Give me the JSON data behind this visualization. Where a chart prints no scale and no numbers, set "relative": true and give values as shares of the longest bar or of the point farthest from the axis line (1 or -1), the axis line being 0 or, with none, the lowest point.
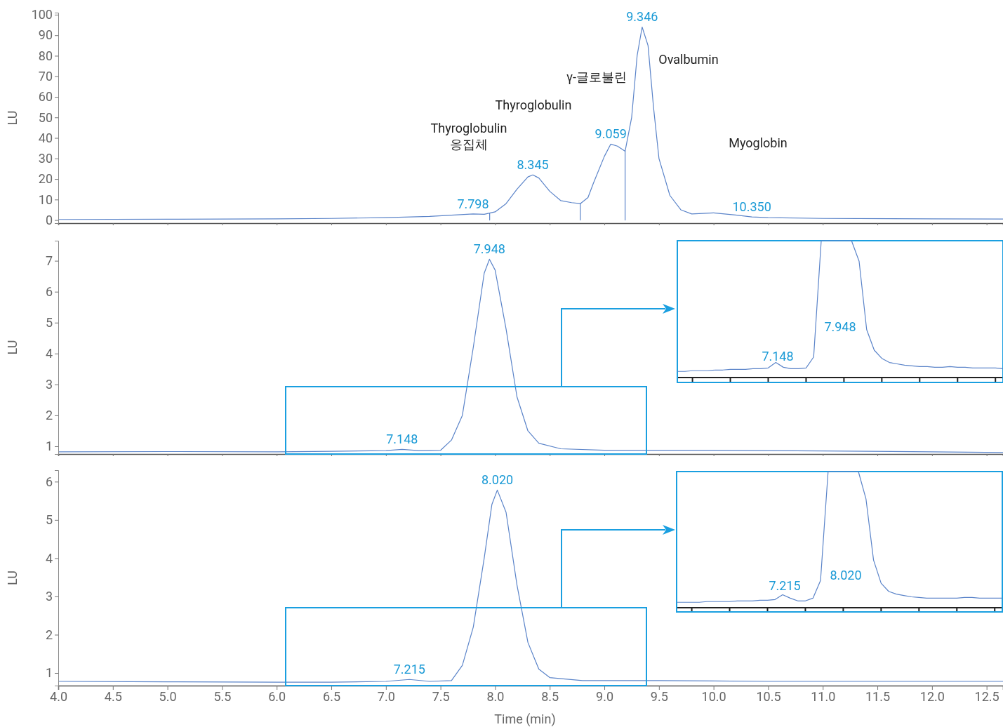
{
  "chart_data": [
    {
      "type": "line",
      "ylabel": "LU",
      "xlim": [
        4.0,
        12.65
      ],
      "ylim": [
        -1.5,
        101
      ],
      "xticks": [
        4.0,
        4.5,
        5.0,
        5.5,
        6.0,
        6.5,
        7.0,
        7.5,
        8.0,
        8.5,
        9.0,
        9.5,
        10.0,
        10.5,
        11.0,
        11.5,
        12.0,
        12.5
      ],
      "yticks": [
        0,
        10,
        20,
        30,
        40,
        50,
        60,
        70,
        80,
        90,
        100
      ],
      "tick_labels": "y",
      "series": [
        {
          "color": "#5b84c9",
          "x": [
            4.0,
            5.0,
            6.0,
            6.5,
            7.0,
            7.4,
            7.6,
            7.798,
            7.9,
            8.0,
            8.1,
            8.2,
            8.3,
            8.345,
            8.4,
            8.5,
            8.6,
            8.7,
            8.78,
            8.85,
            8.9,
            9.0,
            9.059,
            9.12,
            9.19,
            9.25,
            9.3,
            9.346,
            9.4,
            9.45,
            9.5,
            9.6,
            9.7,
            9.8,
            10.0,
            10.2,
            10.35,
            10.5,
            11.0,
            12.0,
            12.65
          ],
          "values": [
            0.3,
            0.4,
            0.6,
            0.8,
            1.2,
            1.8,
            2.4,
            3.0,
            2.8,
            4,
            8,
            15,
            21,
            22,
            20.5,
            14,
            9.5,
            8.5,
            8,
            11,
            18,
            31,
            37,
            36,
            33.5,
            50,
            80,
            94,
            85,
            55,
            30,
            12,
            5,
            3,
            3.5,
            2.5,
            1.5,
            1.2,
            0.8,
            0.6,
            0.5
          ]
        },
        {
          "type": "line",
          "color": "#5b84c9",
          "x": [
            7.95,
            7.95
          ],
          "values": [
            0,
            3.4
          ]
        },
        {
          "type": "line",
          "color": "#5b84c9",
          "x": [
            8.78,
            8.78
          ],
          "values": [
            0,
            8
          ]
        },
        {
          "type": "line",
          "color": "#5b84c9",
          "x": [
            9.19,
            9.19
          ],
          "values": [
            0,
            33.5
          ]
        }
      ],
      "annotations": [
        "Thyroglobulin\n응집체",
        "Thyroglobulin",
        "γ-글로불린",
        "Ovalbumin",
        "Myoglobin",
        {
          "text": "7.798",
          "x": 7.798,
          "y": 3.0
        },
        {
          "text": "8.345",
          "x": 8.345,
          "y": 22
        },
        {
          "text": "9.059",
          "x": 9.059,
          "y": 37
        },
        {
          "text": "9.346",
          "x": 9.346,
          "y": 94
        },
        {
          "text": "10.350",
          "x": 10.35,
          "y": 1.5
        }
      ]
    },
    {
      "type": "line",
      "ylabel": "LU",
      "xlim": [
        4.0,
        12.65
      ],
      "ylim": [
        0.75,
        7.65
      ],
      "xticks": [
        4.0,
        4.5,
        5.0,
        5.5,
        6.0,
        6.5,
        7.0,
        7.5,
        8.0,
        8.5,
        9.0,
        9.5,
        10.0,
        10.5,
        11.0,
        11.5,
        12.0,
        12.5
      ],
      "yticks": [
        1,
        2,
        3,
        4,
        5,
        6,
        7
      ],
      "tick_labels": "y",
      "series": [
        {
          "color": "#5b84c9",
          "x": [
            4.0,
            5.0,
            6.0,
            6.5,
            7.0,
            7.148,
            7.3,
            7.5,
            7.6,
            7.7,
            7.8,
            7.9,
            7.948,
            8.0,
            8.1,
            8.2,
            8.3,
            8.4,
            8.6,
            9.0,
            10.0,
            11.0,
            12.0,
            12.65
          ],
          "values": [
            0.82,
            0.83,
            0.82,
            0.84,
            0.86,
            0.9,
            0.86,
            0.87,
            1.2,
            2.0,
            4.2,
            6.6,
            7.05,
            6.7,
            4.8,
            2.6,
            1.5,
            1.1,
            0.92,
            0.87,
            0.87,
            0.85,
            0.82,
            0.8
          ]
        }
      ],
      "annotations": [
        {
          "text": "7.148",
          "x": 7.148,
          "y": 0.9
        },
        {
          "text": "7.948",
          "x": 7.948,
          "y": 7.05
        }
      ]
    },
    {
      "type": "line",
      "relative": true,
      "tick_labels": false,
      "categories": [
        null,
        null,
        null,
        null,
        null,
        null,
        null,
        null,
        null,
        null,
        null,
        null,
        null,
        null,
        null,
        null,
        null,
        null,
        null,
        null,
        null,
        null,
        null,
        null,
        null,
        null,
        null,
        null,
        null,
        null,
        null,
        null,
        null,
        null,
        null,
        null,
        null,
        null,
        null,
        null,
        null,
        null,
        null,
        null
      ],
      "series": [
        {
          "color": "#5b84c9",
          "values": [
            0.045,
            0.045,
            0.05,
            0.05,
            0.05,
            0.055,
            0.055,
            0.06,
            0.06,
            0.06,
            0.065,
            0.065,
            0.07,
            0.11,
            0.075,
            0.065,
            0.065,
            0.07,
            0.15,
            1.0,
            1.0,
            1.0,
            1.0,
            1.0,
            0.85,
            0.35,
            0.2,
            0.14,
            0.11,
            0.1,
            0.09,
            0.085,
            0.08,
            0.08,
            0.075,
            0.075,
            0.08,
            0.075,
            0.075,
            0.07,
            0.07,
            0.07,
            0.07,
            0.065
          ]
        }
      ],
      "annotations": [
        "7.148",
        "7.948"
      ]
    },
    {
      "type": "line",
      "ylabel": "LU",
      "xlabel": "Time (min)",
      "xlim": [
        4.0,
        12.65
      ],
      "ylim": [
        0.67,
        6.3
      ],
      "xticks": [
        {
          "value": 4.0,
          "label": "4.0"
        },
        {
          "value": 4.5,
          "label": "4.5"
        },
        {
          "value": 5.0,
          "label": "5.0"
        },
        {
          "value": 5.5,
          "label": "5.5"
        },
        {
          "value": 6.0,
          "label": "6.0"
        },
        {
          "value": 6.5,
          "label": "6.5"
        },
        {
          "value": 7.0,
          "label": "7.0"
        },
        {
          "value": 7.5,
          "label": "7.5"
        },
        {
          "value": 8.0,
          "label": "8.0"
        },
        {
          "value": 8.5,
          "label": "8.5"
        },
        {
          "value": 9.0,
          "label": "9.0"
        },
        {
          "value": 9.5,
          "label": "9.5"
        },
        {
          "value": 10.0,
          "label": "10.0"
        },
        {
          "value": 10.5,
          "label": "10.5"
        },
        {
          "value": 11.0,
          "label": "11.0"
        },
        {
          "value": 11.5,
          "label": "11.5"
        },
        {
          "value": 12.0,
          "label": "12.0"
        },
        {
          "value": 12.5,
          "label": "12.5"
        }
      ],
      "yticks": [
        1,
        2,
        3,
        4,
        5,
        6
      ],
      "series": [
        {
          "color": "#5b84c9",
          "x": [
            4.0,
            5.0,
            6.0,
            6.5,
            7.0,
            7.215,
            7.4,
            7.6,
            7.7,
            7.8,
            7.9,
            7.97,
            8.02,
            8.1,
            8.2,
            8.3,
            8.4,
            8.5,
            8.8,
            9.5,
            10.5,
            12.65
          ],
          "values": [
            0.78,
            0.77,
            0.76,
            0.76,
            0.78,
            0.83,
            0.78,
            0.8,
            1.2,
            2.2,
            4.0,
            5.4,
            5.78,
            5.2,
            3.3,
            1.8,
            1.1,
            0.88,
            0.8,
            0.8,
            0.78,
            0.78
          ]
        }
      ],
      "annotations": [
        {
          "text": "7.215",
          "x": 7.215,
          "y": 0.83
        },
        {
          "text": "8.020",
          "x": 8.02,
          "y": 5.78
        }
      ]
    },
    {
      "type": "line",
      "relative": true,
      "tick_labels": false,
      "categories": [
        null,
        null,
        null,
        null,
        null,
        null,
        null,
        null,
        null,
        null,
        null,
        null,
        null,
        null,
        null,
        null,
        null,
        null,
        null,
        null,
        null,
        null,
        null,
        null,
        null,
        null,
        null,
        null,
        null,
        null,
        null,
        null,
        null,
        null,
        null,
        null,
        null,
        null,
        null,
        null,
        null,
        null,
        null,
        null
      ],
      "series": [
        {
          "color": "#5b84c9",
          "values": [
            0.04,
            0.04,
            0.04,
            0.04,
            0.045,
            0.045,
            0.045,
            0.045,
            0.05,
            0.05,
            0.05,
            0.055,
            0.055,
            0.06,
            0.095,
            0.07,
            0.05,
            0.05,
            0.07,
            0.2,
            1.0,
            1.0,
            1.0,
            1.0,
            1.0,
            0.8,
            0.35,
            0.18,
            0.12,
            0.1,
            0.09,
            0.08,
            0.075,
            0.07,
            0.07,
            0.07,
            0.07,
            0.07,
            0.075,
            0.075,
            0.07,
            0.07,
            0.07,
            0.07
          ]
        }
      ],
      "annotations": [
        "7.215",
        "8.020"
      ]
    }
  ]
}
